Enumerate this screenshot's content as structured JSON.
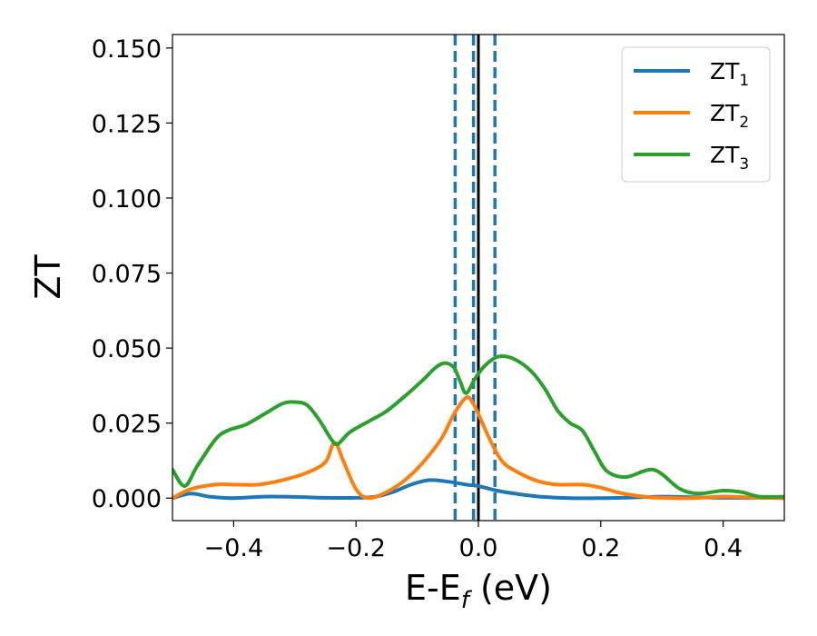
{
  "chart_data": {
    "type": "line",
    "xlabel": {
      "main": "E-E",
      "sub": "f",
      "suffix": " (eV)"
    },
    "ylabel": "ZT",
    "xlim": [
      -0.5,
      0.5
    ],
    "ylim": [
      -0.0075,
      0.1545
    ],
    "grid": false,
    "legend_position": "top-right",
    "x_ticks": [
      {
        "value": -0.4,
        "label": "−0.4"
      },
      {
        "value": -0.2,
        "label": "−0.2"
      },
      {
        "value": 0.0,
        "label": "0.0"
      },
      {
        "value": 0.2,
        "label": "0.2"
      },
      {
        "value": 0.4,
        "label": "0.4"
      }
    ],
    "y_ticks": [
      {
        "value": 0.0,
        "label": "0.000"
      },
      {
        "value": 0.025,
        "label": "0.025"
      },
      {
        "value": 0.05,
        "label": "0.050"
      },
      {
        "value": 0.075,
        "label": "0.075"
      },
      {
        "value": 0.1,
        "label": "0.100"
      },
      {
        "value": 0.125,
        "label": "0.125"
      },
      {
        "value": 0.15,
        "label": "0.150"
      }
    ],
    "reference_lines": [
      {
        "x": -0.038,
        "color": "#1f77b4",
        "style": "dashed"
      },
      {
        "x": -0.008,
        "color": "#1f77b4",
        "style": "dashed"
      },
      {
        "x": 0.027,
        "color": "#1f77b4",
        "style": "dashed"
      },
      {
        "x": 0.0,
        "color": "#000000",
        "style": "solid"
      }
    ],
    "series": [
      {
        "name_main": "ZT",
        "name_sub": "1",
        "color": "#1f77b4",
        "points": [
          [
            -0.5,
            0.0
          ],
          [
            -0.47,
            0.0015
          ],
          [
            -0.44,
            0.0005
          ],
          [
            -0.4,
            0.0
          ],
          [
            -0.35,
            0.0005
          ],
          [
            -0.3,
            0.0004
          ],
          [
            -0.25,
            0.0001
          ],
          [
            -0.2,
            0.0001
          ],
          [
            -0.17,
            0.0004
          ],
          [
            -0.14,
            0.002
          ],
          [
            -0.11,
            0.0045
          ],
          [
            -0.08,
            0.006
          ],
          [
            -0.05,
            0.0055
          ],
          [
            -0.02,
            0.0045
          ],
          [
            0.0,
            0.004
          ],
          [
            0.03,
            0.0025
          ],
          [
            0.06,
            0.0015
          ],
          [
            0.1,
            0.0005
          ],
          [
            0.15,
            0.0
          ],
          [
            0.2,
            0.0
          ],
          [
            0.25,
            0.0002
          ],
          [
            0.3,
            0.0005
          ],
          [
            0.35,
            0.0003
          ],
          [
            0.4,
            0.0001
          ],
          [
            0.45,
            0.0001
          ],
          [
            0.5,
            0.0
          ]
        ]
      },
      {
        "name_main": "ZT",
        "name_sub": "2",
        "color": "#ff7f0e",
        "points": [
          [
            -0.5,
            0.0
          ],
          [
            -0.47,
            0.003
          ],
          [
            -0.43,
            0.0045
          ],
          [
            -0.4,
            0.0045
          ],
          [
            -0.36,
            0.0045
          ],
          [
            -0.32,
            0.006
          ],
          [
            -0.28,
            0.0085
          ],
          [
            -0.25,
            0.012
          ],
          [
            -0.235,
            0.0185
          ],
          [
            -0.22,
            0.012
          ],
          [
            -0.2,
            0.003
          ],
          [
            -0.18,
            0.0
          ],
          [
            -0.15,
            0.002
          ],
          [
            -0.12,
            0.006
          ],
          [
            -0.09,
            0.012
          ],
          [
            -0.06,
            0.02
          ],
          [
            -0.04,
            0.028
          ],
          [
            -0.02,
            0.0335
          ],
          [
            -0.01,
            0.032
          ],
          [
            0.0,
            0.028
          ],
          [
            0.02,
            0.019
          ],
          [
            0.04,
            0.012
          ],
          [
            0.07,
            0.008
          ],
          [
            0.1,
            0.0055
          ],
          [
            0.13,
            0.0045
          ],
          [
            0.17,
            0.0045
          ],
          [
            0.2,
            0.0035
          ],
          [
            0.23,
            0.0018
          ],
          [
            0.27,
            0.0005
          ],
          [
            0.3,
            0.0001
          ],
          [
            0.35,
            0.0
          ],
          [
            0.4,
            0.0005
          ],
          [
            0.45,
            0.0002
          ],
          [
            0.5,
            0.0
          ]
        ]
      },
      {
        "name_main": "ZT",
        "name_sub": "3",
        "color": "#2ca02c",
        "points": [
          [
            -0.5,
            0.0095
          ],
          [
            -0.48,
            0.004
          ],
          [
            -0.46,
            0.0105
          ],
          [
            -0.43,
            0.0195
          ],
          [
            -0.41,
            0.0225
          ],
          [
            -0.38,
            0.0245
          ],
          [
            -0.35,
            0.028
          ],
          [
            -0.32,
            0.0315
          ],
          [
            -0.3,
            0.032
          ],
          [
            -0.28,
            0.031
          ],
          [
            -0.26,
            0.026
          ],
          [
            -0.24,
            0.0195
          ],
          [
            -0.23,
            0.018
          ],
          [
            -0.21,
            0.022
          ],
          [
            -0.18,
            0.0255
          ],
          [
            -0.15,
            0.029
          ],
          [
            -0.12,
            0.034
          ],
          [
            -0.09,
            0.0395
          ],
          [
            -0.07,
            0.0435
          ],
          [
            -0.055,
            0.045
          ],
          [
            -0.04,
            0.0435
          ],
          [
            -0.03,
            0.039
          ],
          [
            -0.02,
            0.035
          ],
          [
            -0.005,
            0.04
          ],
          [
            0.01,
            0.044
          ],
          [
            0.03,
            0.047
          ],
          [
            0.05,
            0.047
          ],
          [
            0.07,
            0.045
          ],
          [
            0.09,
            0.0415
          ],
          [
            0.11,
            0.036
          ],
          [
            0.13,
            0.029
          ],
          [
            0.15,
            0.025
          ],
          [
            0.17,
            0.0225
          ],
          [
            0.19,
            0.0155
          ],
          [
            0.21,
            0.009
          ],
          [
            0.24,
            0.007
          ],
          [
            0.27,
            0.009
          ],
          [
            0.285,
            0.0095
          ],
          [
            0.3,
            0.008
          ],
          [
            0.33,
            0.003
          ],
          [
            0.36,
            0.0015
          ],
          [
            0.4,
            0.0025
          ],
          [
            0.43,
            0.002
          ],
          [
            0.46,
            0.0005
          ],
          [
            0.5,
            0.0005
          ]
        ]
      }
    ]
  }
}
